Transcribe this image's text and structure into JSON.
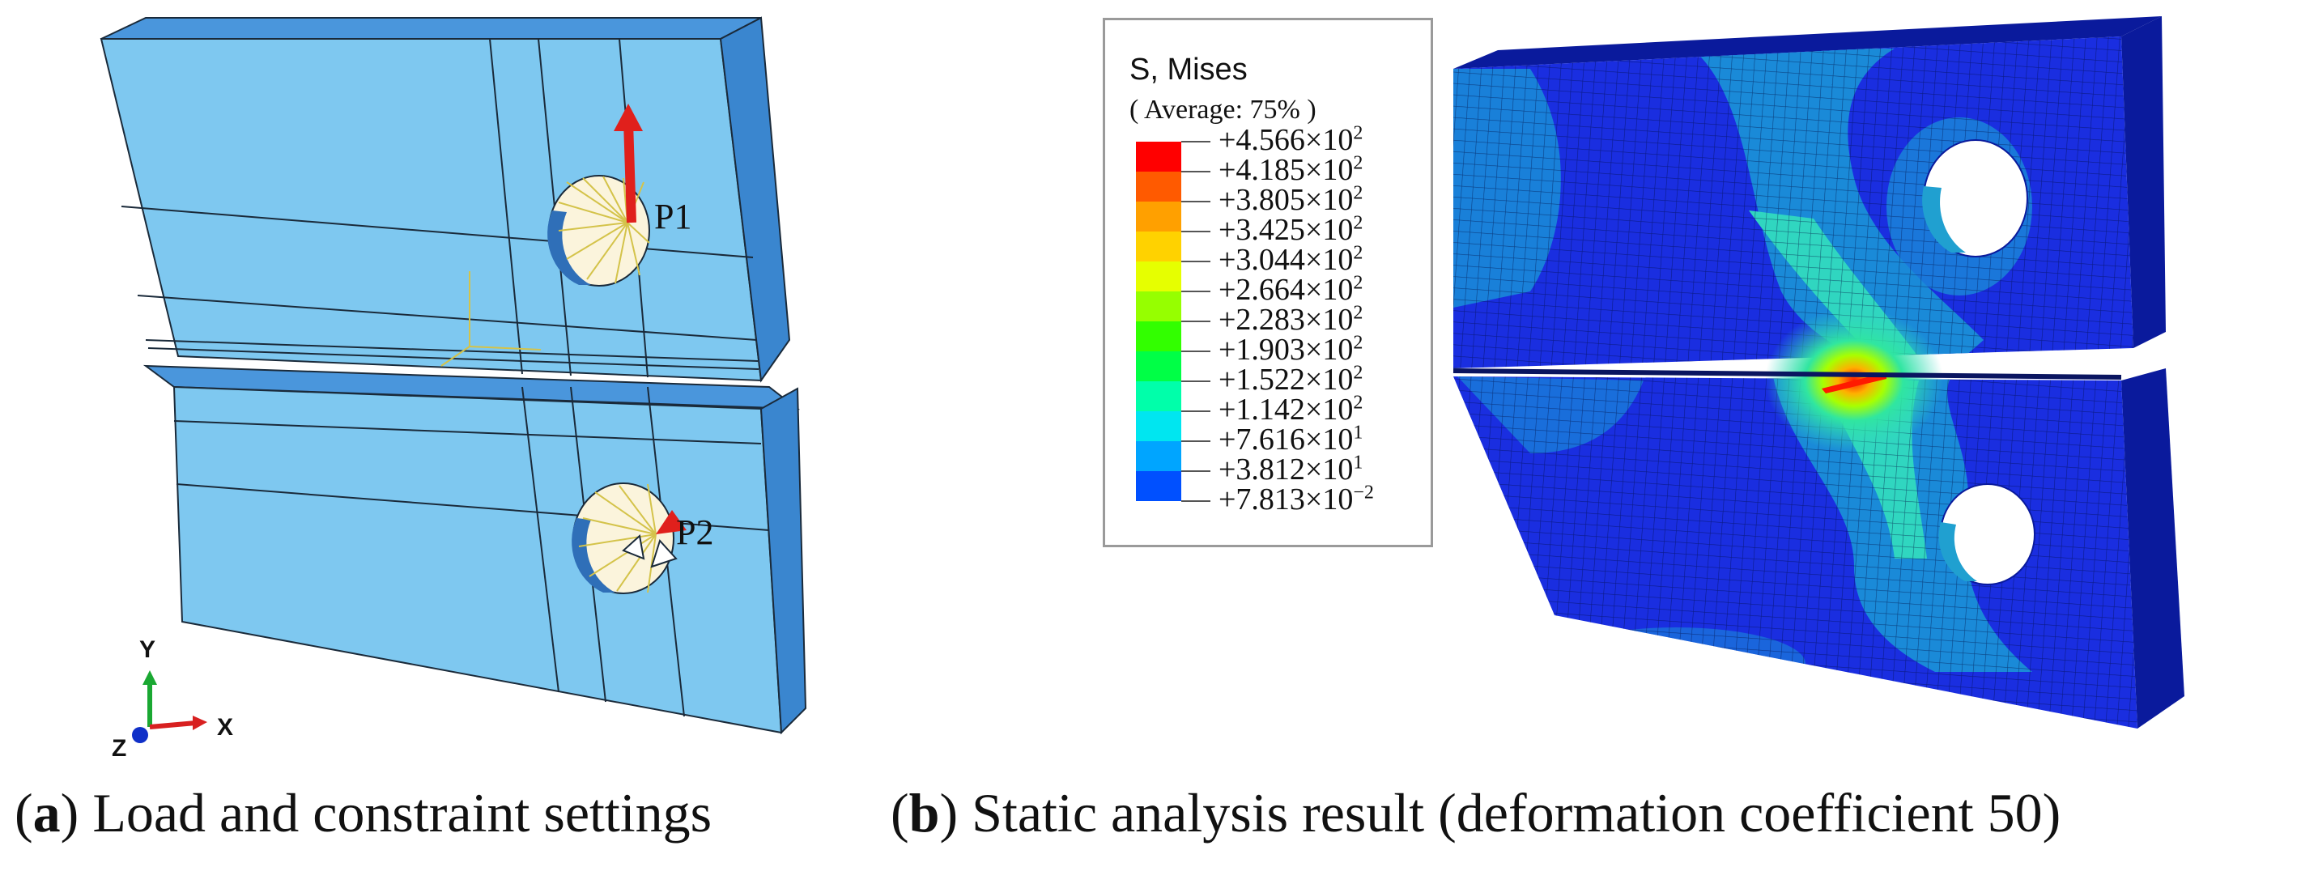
{
  "panel_a": {
    "load_labels": [
      "P1",
      "P2"
    ],
    "triad": {
      "y": "Y",
      "x": "X",
      "z": "Z"
    },
    "colors": {
      "body_face": "#7ec8f0",
      "body_side": "#3a86cf",
      "body_top": "#4a96dc",
      "load_arrow": "#e0201c",
      "constraint_lines": "#d4c34a",
      "hole_fill": "#fbf4dc"
    }
  },
  "panel_b": {
    "legend": {
      "title": "S, Mises",
      "subtitle": "( Average:  75% )",
      "entries": [
        {
          "text": "+4.566×10",
          "exp": "2",
          "color": "#ff0000"
        },
        {
          "text": "+4.185×10",
          "exp": "2",
          "color": "#ff5a00"
        },
        {
          "text": "+3.805×10",
          "exp": "2",
          "color": "#ffa000"
        },
        {
          "text": "+3.425×10",
          "exp": "2",
          "color": "#ffd200"
        },
        {
          "text": "+3.044×10",
          "exp": "2",
          "color": "#e6ff00"
        },
        {
          "text": "+2.664×10",
          "exp": "2",
          "color": "#96ff00"
        },
        {
          "text": "+2.283×10",
          "exp": "2",
          "color": "#32ff00"
        },
        {
          "text": "+1.903×10",
          "exp": "2",
          "color": "#00ff46"
        },
        {
          "text": "+1.522×10",
          "exp": "2",
          "color": "#00ffaa"
        },
        {
          "text": "+1.142×10",
          "exp": "2",
          "color": "#00e6f0"
        },
        {
          "text": "+7.616×10",
          "exp": "1",
          "color": "#00a5ff"
        },
        {
          "text": "+3.812×10",
          "exp": "1",
          "color": "#0050ff"
        },
        {
          "text": "+7.813×10",
          "exp": "−2",
          "color": "#0000ff"
        }
      ]
    },
    "colors": {
      "base": "#1a2ee0",
      "side": "#0a1a9c",
      "mid_stress": "#1a8ad8",
      "high_stress": "#30d6c0"
    }
  },
  "captions": {
    "a_letter": "a",
    "a_text": "Load and constraint settings",
    "b_letter": "b",
    "b_text": "Static analysis result (deformation coefficient 50)"
  }
}
